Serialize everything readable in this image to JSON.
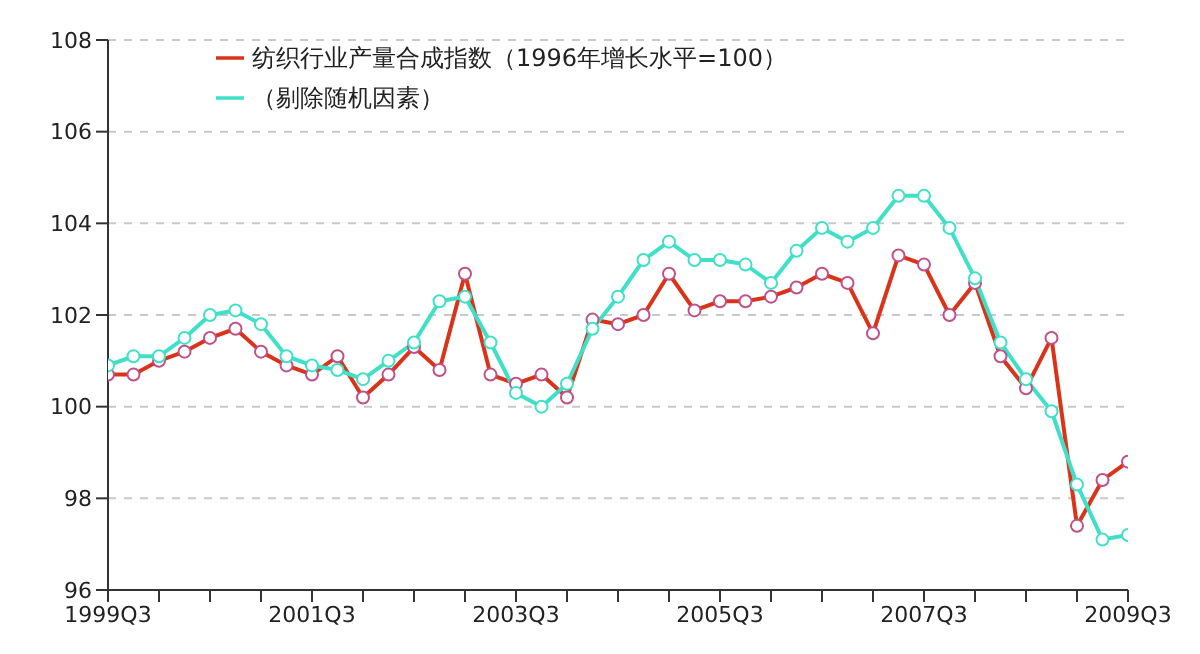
{
  "chart_data": {
    "type": "line",
    "categories": [
      "1999Q3",
      null,
      null,
      null,
      null,
      null,
      null,
      null,
      "2001Q3",
      null,
      null,
      null,
      null,
      null,
      null,
      null,
      "2003Q3",
      null,
      null,
      null,
      null,
      null,
      null,
      null,
      "2005Q3",
      null,
      null,
      null,
      null,
      null,
      null,
      null,
      "2007Q3",
      null,
      null,
      null,
      null,
      null,
      null,
      null,
      "2009Q3"
    ],
    "series": [
      {
        "name": "纺织行业产量合成指数（1996年增长水平=100）",
        "color": "#d9341a",
        "values": [
          100.7,
          100.7,
          101.0,
          101.2,
          101.5,
          101.7,
          101.2,
          100.9,
          100.7,
          101.1,
          100.2,
          100.7,
          101.3,
          100.8,
          102.9,
          100.7,
          100.5,
          100.7,
          100.2,
          101.9,
          101.8,
          102.0,
          102.9,
          102.1,
          102.3,
          102.3,
          102.4,
          102.6,
          102.9,
          102.7,
          101.6,
          103.3,
          103.1,
          102.0,
          102.7,
          101.1,
          100.4,
          101.5,
          97.4,
          98.4,
          98.8
        ]
      },
      {
        "name": "（剔除随机因素）",
        "color": "#40e0c8",
        "values": [
          100.9,
          101.1,
          101.1,
          101.5,
          102.0,
          102.1,
          101.8,
          101.1,
          100.9,
          100.8,
          100.6,
          101.0,
          101.4,
          102.3,
          102.4,
          101.4,
          100.3,
          100.0,
          100.5,
          101.7,
          102.4,
          103.2,
          103.6,
          103.2,
          103.2,
          103.1,
          102.7,
          103.4,
          103.9,
          103.6,
          103.9,
          104.6,
          104.6,
          103.9,
          102.8,
          101.4,
          100.6,
          99.9,
          98.3,
          97.1,
          97.2
        ]
      }
    ],
    "ylim": [
      96,
      108
    ],
    "yticks": [
      96,
      98,
      100,
      102,
      104,
      106,
      108
    ],
    "grid": "y",
    "legend": "top left",
    "marker": "circle",
    "line_style": "solid"
  }
}
